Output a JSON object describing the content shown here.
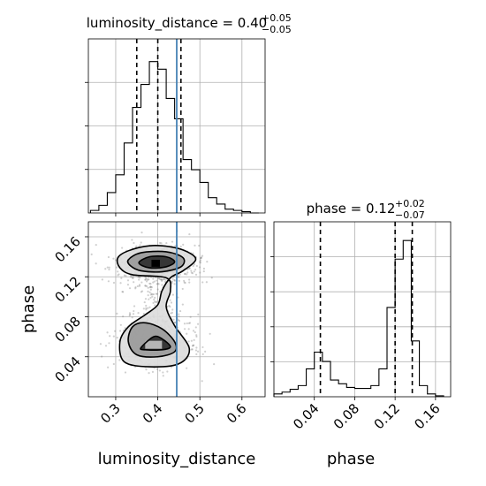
{
  "chart_data": [
    {
      "panel": "marginal-luminosity_distance",
      "type": "histogram",
      "title": "luminosity_distance = 0.40",
      "title_sup": "+0.05",
      "title_sub": "−0.05",
      "bin_edges": [
        0.24,
        0.26,
        0.28,
        0.3,
        0.32,
        0.34,
        0.36,
        0.38,
        0.4,
        0.42,
        0.44,
        0.46,
        0.48,
        0.5,
        0.52,
        0.54,
        0.56,
        0.58,
        0.6,
        0.62,
        0.64
      ],
      "counts": [
        2,
        6,
        16,
        30,
        55,
        83,
        101,
        119,
        113,
        90,
        74,
        42,
        34,
        24,
        12,
        7,
        3,
        2,
        1,
        0
      ],
      "xlim": [
        0.235,
        0.655
      ],
      "quantile_lines": [
        0.35,
        0.4,
        0.455
      ],
      "truth": 0.445
    },
    {
      "panel": "joint-luminosity_distance-phase",
      "type": "scatter-contour",
      "xlabel": "luminosity_distance",
      "ylabel": "phase",
      "xticks": [
        "0.3",
        "0.4",
        "0.5",
        "0.6"
      ],
      "yticks": [
        "0.04",
        "0.08",
        "0.12",
        "0.16"
      ],
      "xlim": [
        0.235,
        0.655
      ],
      "ylim": [
        0.0,
        0.175
      ],
      "truth_x": 0.445,
      "modes": [
        {
          "x": 0.4,
          "y": 0.133,
          "sx": 0.045,
          "sy": 0.009,
          "weight": 0.6
        },
        {
          "x": 0.39,
          "y": 0.055,
          "sx": 0.045,
          "sy": 0.013,
          "weight": 0.4
        }
      ],
      "contours": [
        {
          "level": 1,
          "points": [
            [
              0.305,
              0.139
            ],
            [
              0.33,
              0.146
            ],
            [
              0.38,
              0.151
            ],
            [
              0.43,
              0.15
            ],
            [
              0.47,
              0.145
            ],
            [
              0.49,
              0.137
            ],
            [
              0.46,
              0.126
            ],
            [
              0.43,
              0.119
            ],
            [
              0.41,
              0.106
            ],
            [
              0.4,
              0.092
            ],
            [
              0.37,
              0.082
            ],
            [
              0.33,
              0.07
            ],
            [
              0.31,
              0.055
            ],
            [
              0.32,
              0.035
            ],
            [
              0.38,
              0.03
            ],
            [
              0.45,
              0.033
            ],
            [
              0.475,
              0.048
            ],
            [
              0.44,
              0.071
            ],
            [
              0.42,
              0.09
            ],
            [
              0.43,
              0.106
            ],
            [
              0.42,
              0.119
            ],
            [
              0.34,
              0.122
            ],
            [
              0.31,
              0.129
            ]
          ]
        },
        {
          "level": 2,
          "points": [
            [
              0.33,
              0.137
            ],
            [
              0.36,
              0.144
            ],
            [
              0.42,
              0.145
            ],
            [
              0.46,
              0.139
            ],
            [
              0.455,
              0.13
            ],
            [
              0.41,
              0.125
            ],
            [
              0.36,
              0.126
            ],
            [
              0.335,
              0.131
            ]
          ]
        },
        {
          "level": 2,
          "points": [
            [
              0.33,
              0.055
            ],
            [
              0.34,
              0.07
            ],
            [
              0.37,
              0.074
            ],
            [
              0.41,
              0.068
            ],
            [
              0.44,
              0.055
            ],
            [
              0.44,
              0.045
            ],
            [
              0.4,
              0.04
            ],
            [
              0.35,
              0.042
            ]
          ]
        },
        {
          "level": 3,
          "points": [
            [
              0.355,
              0.134
            ],
            [
              0.38,
              0.14
            ],
            [
              0.42,
              0.14
            ],
            [
              0.44,
              0.135
            ],
            [
              0.42,
              0.13
            ],
            [
              0.38,
              0.129
            ]
          ]
        },
        {
          "level": 3,
          "points": [
            [
              0.36,
              0.049
            ],
            [
              0.39,
              0.06
            ],
            [
              0.41,
              0.058
            ],
            [
              0.43,
              0.05
            ],
            [
              0.41,
              0.047
            ],
            [
              0.37,
              0.047
            ]
          ]
        }
      ]
    },
    {
      "panel": "marginal-phase",
      "type": "histogram",
      "title": "phase = 0.12",
      "title_sup": "+0.02",
      "title_sub": "−0.07",
      "xlabel": "phase",
      "xticks": [
        "0.04",
        "0.08",
        "0.12",
        "0.16"
      ],
      "bin_edges": [
        0.0,
        0.008,
        0.016,
        0.024,
        0.032,
        0.04,
        0.048,
        0.056,
        0.064,
        0.072,
        0.08,
        0.088,
        0.096,
        0.104,
        0.112,
        0.12,
        0.128,
        0.136,
        0.144,
        0.152,
        0.16,
        0.168
      ],
      "counts": [
        3,
        5,
        8,
        12,
        30,
        48,
        38,
        18,
        14,
        10,
        9,
        9,
        12,
        30,
        96,
        148,
        168,
        60,
        12,
        3,
        1
      ],
      "xlim": [
        0.0,
        0.175
      ],
      "quantile_lines": [
        0.046,
        0.12,
        0.137
      ]
    }
  ]
}
